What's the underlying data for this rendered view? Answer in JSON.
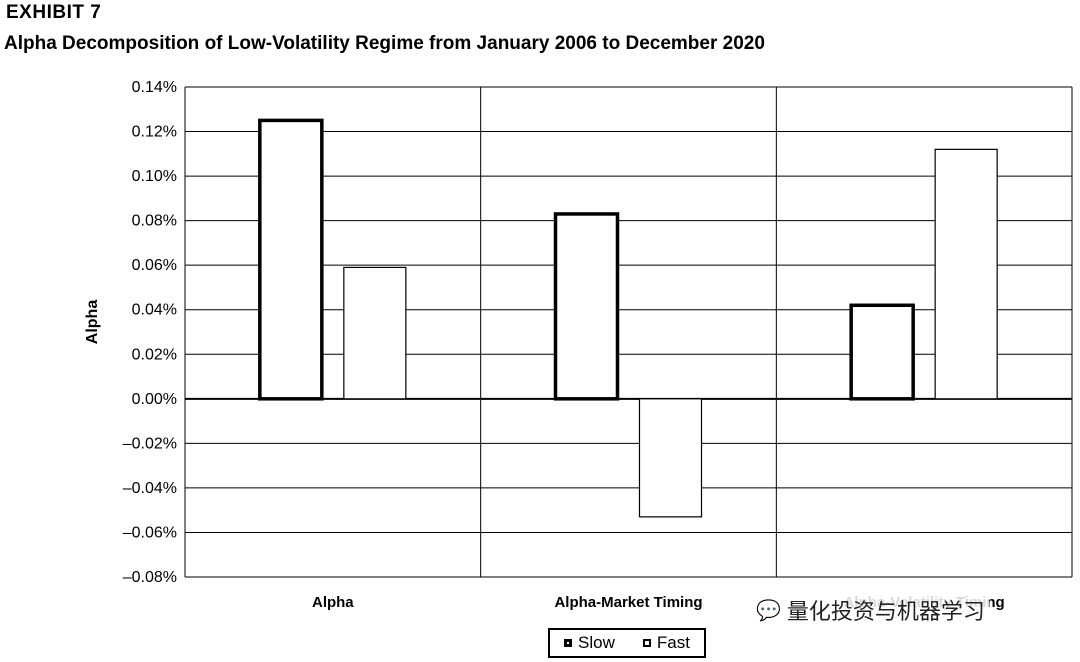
{
  "header": {
    "exhibit": "EXHIBIT 7",
    "title": "Alpha Decomposition of Low-Volatility Regime from January 2006 to December 2020"
  },
  "chart_data": {
    "type": "bar",
    "categories": [
      "Alpha",
      "Alpha-Market Timing",
      "Alpha-Volatility Timing"
    ],
    "series": [
      {
        "name": "Slow",
        "values": [
          0.125,
          0.083,
          0.042
        ]
      },
      {
        "name": "Fast",
        "values": [
          0.059,
          -0.053,
          0.112
        ]
      }
    ],
    "ylabel": "Alpha",
    "xlabel": "",
    "ylim": [
      -0.08,
      0.14
    ],
    "yticks": [
      0.14,
      0.12,
      0.1,
      0.08,
      0.06,
      0.04,
      0.02,
      0.0,
      -0.02,
      -0.04,
      -0.06,
      -0.08
    ],
    "ytick_labels": [
      "0.14%",
      "0.12%",
      "0.10%",
      "0.08%",
      "0.06%",
      "0.04%",
      "0.02%",
      "0.00%",
      "–0.02%",
      "–0.04%",
      "–0.06%",
      "–0.08%"
    ],
    "grid": true,
    "legend_position": "bottom-center"
  },
  "legend": {
    "slow": "Slow",
    "fast": "Fast"
  },
  "watermark": {
    "text": "量化投资与机器学习",
    "icon": "wechat-icon"
  }
}
